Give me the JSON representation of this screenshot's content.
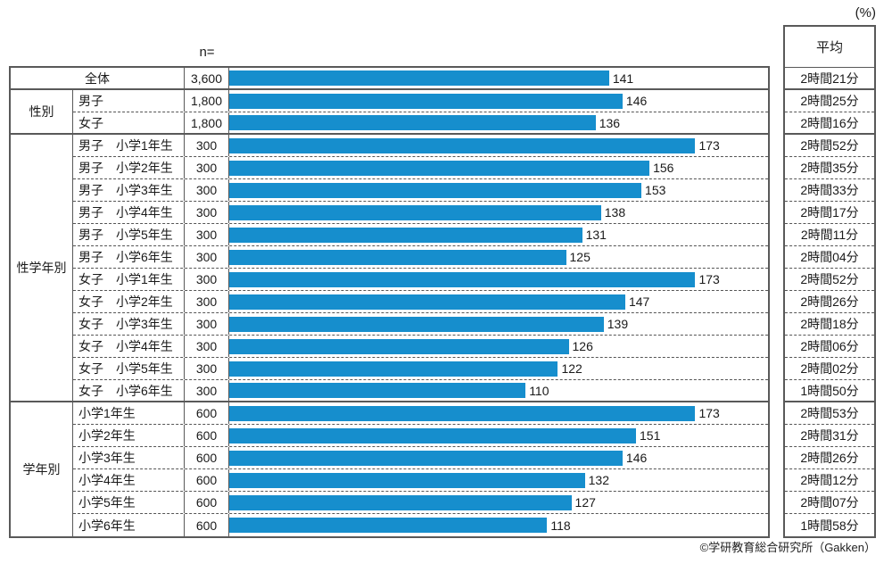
{
  "header": {
    "percent_label": "(%)",
    "n_label": "n=",
    "avg_label": "平均"
  },
  "footer": {
    "credit": "©学研教育総合研究所（Gakken）"
  },
  "colors": {
    "bar": "#168ecd",
    "border": "#595959"
  },
  "chart_data": {
    "type": "bar",
    "orientation": "horizontal",
    "xlim": [
      0,
      200
    ],
    "grid": false,
    "legend": false,
    "value_unit": "minutes",
    "groups": [
      {
        "name": "",
        "rows": [
          {
            "label": "全体",
            "n": "3,600",
            "value": 141,
            "avg": "2時間21分"
          }
        ]
      },
      {
        "name": "性別",
        "rows": [
          {
            "label": "男子",
            "n": "1,800",
            "value": 146,
            "avg": "2時間25分"
          },
          {
            "label": "女子",
            "n": "1,800",
            "value": 136,
            "avg": "2時間16分"
          }
        ]
      },
      {
        "name": "性学年別",
        "rows": [
          {
            "label": "男子　小学1年生",
            "n": "300",
            "value": 173,
            "avg": "2時間52分"
          },
          {
            "label": "男子　小学2年生",
            "n": "300",
            "value": 156,
            "avg": "2時間35分"
          },
          {
            "label": "男子　小学3年生",
            "n": "300",
            "value": 153,
            "avg": "2時間33分"
          },
          {
            "label": "男子　小学4年生",
            "n": "300",
            "value": 138,
            "avg": "2時間17分"
          },
          {
            "label": "男子　小学5年生",
            "n": "300",
            "value": 131,
            "avg": "2時間11分"
          },
          {
            "label": "男子　小学6年生",
            "n": "300",
            "value": 125,
            "avg": "2時間04分"
          },
          {
            "label": "女子　小学1年生",
            "n": "300",
            "value": 173,
            "avg": "2時間52分"
          },
          {
            "label": "女子　小学2年生",
            "n": "300",
            "value": 147,
            "avg": "2時間26分"
          },
          {
            "label": "女子　小学3年生",
            "n": "300",
            "value": 139,
            "avg": "2時間18分"
          },
          {
            "label": "女子　小学4年生",
            "n": "300",
            "value": 126,
            "avg": "2時間06分"
          },
          {
            "label": "女子　小学5年生",
            "n": "300",
            "value": 122,
            "avg": "2時間02分"
          },
          {
            "label": "女子　小学6年生",
            "n": "300",
            "value": 110,
            "avg": "1時間50分"
          }
        ]
      },
      {
        "name": "学年別",
        "rows": [
          {
            "label": "小学1年生",
            "n": "600",
            "value": 173,
            "avg": "2時間53分"
          },
          {
            "label": "小学2年生",
            "n": "600",
            "value": 151,
            "avg": "2時間31分"
          },
          {
            "label": "小学3年生",
            "n": "600",
            "value": 146,
            "avg": "2時間26分"
          },
          {
            "label": "小学4年生",
            "n": "600",
            "value": 132,
            "avg": "2時間12分"
          },
          {
            "label": "小学5年生",
            "n": "600",
            "value": 127,
            "avg": "2時間07分"
          },
          {
            "label": "小学6年生",
            "n": "600",
            "value": 118,
            "avg": "1時間58分"
          }
        ]
      }
    ]
  }
}
